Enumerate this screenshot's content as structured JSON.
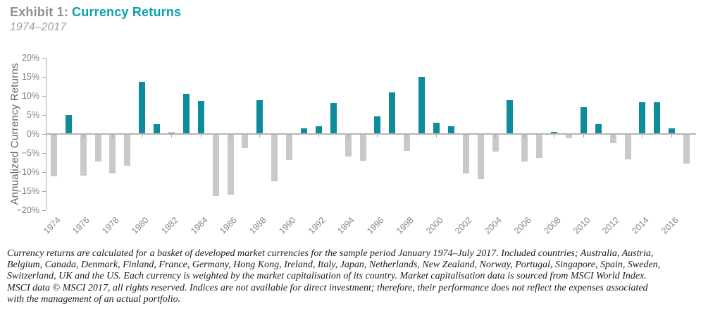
{
  "header": {
    "exhibit_label": "Exhibit 1:",
    "title": "Currency Returns",
    "subtitle": "1974–2017"
  },
  "chart_data": {
    "type": "bar",
    "title": "Exhibit 1: Currency Returns",
    "subtitle": "1974–2017",
    "xlabel": "",
    "ylabel": "Annualized Currency Returns",
    "ylim": [
      -20,
      20
    ],
    "ytick_step": 5,
    "ytick_labels": [
      "20%",
      "15%",
      "10%",
      "5%",
      "0%",
      "−5%",
      "−10%",
      "−15%",
      "−20%"
    ],
    "xtick_labels": [
      "1974",
      "1976",
      "1978",
      "1980",
      "1982",
      "1984",
      "1986",
      "1988",
      "1990",
      "1992",
      "1994",
      "1996",
      "1998",
      "2000",
      "2002",
      "2004",
      "2006",
      "2008",
      "2010",
      "2012",
      "2014",
      "2016"
    ],
    "grid": false,
    "legend": null,
    "value_unit": "percent",
    "positive_color": "#0E8C9C",
    "negative_color": "#C9C9C9",
    "categories": [
      1974,
      1975,
      1976,
      1977,
      1978,
      1979,
      1980,
      1981,
      1982,
      1983,
      1984,
      1985,
      1986,
      1987,
      1988,
      1989,
      1990,
      1991,
      1992,
      1993,
      1994,
      1995,
      1996,
      1997,
      1998,
      1999,
      2000,
      2001,
      2002,
      2003,
      2004,
      2005,
      2006,
      2007,
      2008,
      2009,
      2010,
      2011,
      2012,
      2013,
      2014,
      2015,
      2016,
      2017
    ],
    "values": [
      -11.1,
      5.0,
      -10.9,
      -7.3,
      -10.4,
      -8.3,
      13.7,
      2.5,
      0.4,
      10.6,
      8.7,
      -16.3,
      -16.0,
      -3.7,
      8.9,
      -12.4,
      -6.9,
      1.5,
      2.1,
      8.2,
      -6.0,
      -7.1,
      4.7,
      11.0,
      -4.4,
      15.0,
      3.0,
      2.1,
      -10.3,
      -11.8,
      -4.7,
      8.9,
      -7.3,
      -6.3,
      0.5,
      -1.1,
      7.1,
      2.6,
      -2.4,
      -6.7,
      8.4,
      8.3,
      1.5,
      -7.8
    ]
  },
  "footnote": {
    "lines": [
      "Currency returns are calculated for a basket of developed market currencies for the sample period January 1974–July 2017. Included countries; Australia, Austria,",
      "Belgium, Canada, Denmark, Finland, France, Germany, Hong Kong, Ireland, Italy, Japan, Netherlands, New Zealand, Norway, Portugal, Singapore, Spain, Sweden,",
      "Switzerland, UK and the US. Each currency is weighted by the market capitalisation of its country. Market capitalisation data is sourced from MSCI World Index.",
      "MSCI data © MSCI 2017, all rights reserved. Indices are not available for direct investment; therefore, their performance does not reflect the expenses associated",
      "with the management of an actual portfolio."
    ]
  }
}
